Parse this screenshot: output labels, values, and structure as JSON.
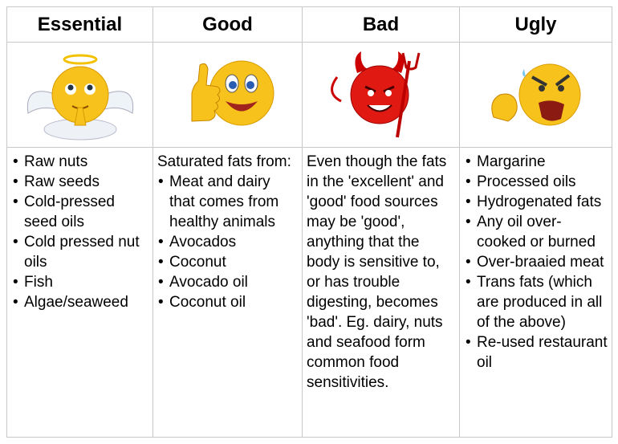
{
  "table": {
    "headers": [
      "Essential",
      "Good",
      "Bad",
      "Ugly"
    ],
    "columns": [
      {
        "items": [
          "Raw nuts",
          "Raw seeds",
          "Cold-pressed seed oils",
          "Cold pressed nut oils",
          "Fish",
          "Algae/seaweed"
        ]
      },
      {
        "intro": "Saturated fats from:",
        "items": [
          "Meat and dairy that comes from healthy animals",
          "Avocados",
          "Coconut",
          "Avocado oil",
          "Coconut oil"
        ]
      },
      {
        "paragraph": "Even though the fats in the 'excellent' and 'good' food sources may be 'good', anything that the body is sensitive to, or has trouble digesting, becomes 'bad'. Eg. dairy, nuts and seafood form common food sensitivities."
      },
      {
        "items": [
          "Margarine",
          "Processed oils",
          "Hydrogenated fats",
          "Any oil over-cooked or burned",
          "Over-braaied meat",
          "Trans fats (which are produced in all of the above)",
          "Re-used restaurant oil"
        ]
      }
    ]
  }
}
